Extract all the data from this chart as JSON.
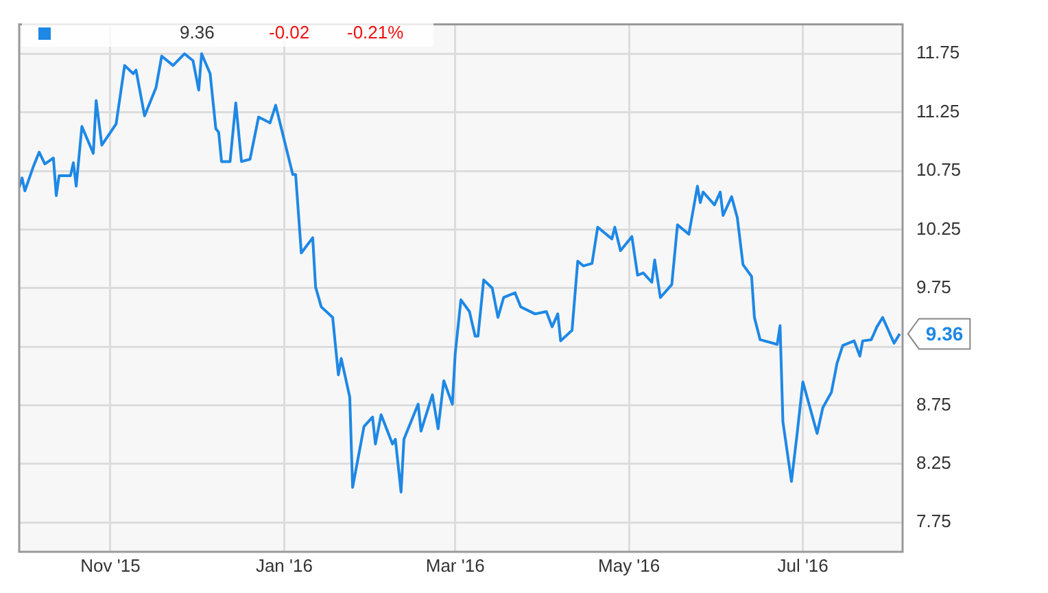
{
  "chart_data": {
    "type": "line",
    "x": [
      "2015-09-30",
      "2015-10-01",
      "2015-10-02",
      "2015-10-05",
      "2015-10-07",
      "2015-10-09",
      "2015-10-12",
      "2015-10-13",
      "2015-10-14",
      "2015-10-18",
      "2015-10-19",
      "2015-10-20",
      "2015-10-22",
      "2015-10-26",
      "2015-10-27",
      "2015-10-29",
      "2015-11-03",
      "2015-11-06",
      "2015-11-09",
      "2015-11-10",
      "2015-11-13",
      "2015-11-17",
      "2015-11-19",
      "2015-11-23",
      "2015-11-27",
      "2015-11-30",
      "2015-12-02",
      "2015-12-03",
      "2015-12-06",
      "2015-12-08",
      "2015-12-09",
      "2015-12-10",
      "2015-12-13",
      "2015-12-15",
      "2015-12-17",
      "2015-12-20",
      "2015-12-23",
      "2015-12-27",
      "2015-12-29",
      "2016-01-04",
      "2016-01-05",
      "2016-01-07",
      "2016-01-11",
      "2016-01-12",
      "2016-01-14",
      "2016-01-18",
      "2016-01-20",
      "2016-01-21",
      "2016-01-24",
      "2016-01-25",
      "2016-01-29",
      "2016-02-01",
      "2016-02-02",
      "2016-02-04",
      "2016-02-08",
      "2016-02-09",
      "2016-02-11",
      "2016-02-12",
      "2016-02-17",
      "2016-02-18",
      "2016-02-22",
      "2016-02-24",
      "2016-02-26",
      "2016-02-29",
      "2016-03-01",
      "2016-03-03",
      "2016-03-06",
      "2016-03-08",
      "2016-03-09",
      "2016-03-11",
      "2016-03-14",
      "2016-03-16",
      "2016-03-18",
      "2016-03-22",
      "2016-03-24",
      "2016-03-29",
      "2016-04-02",
      "2016-04-04",
      "2016-04-06",
      "2016-04-07",
      "2016-04-11",
      "2016-04-13",
      "2016-04-15",
      "2016-04-18",
      "2016-04-20",
      "2016-04-25",
      "2016-04-26",
      "2016-04-28",
      "2016-05-02",
      "2016-05-04",
      "2016-05-06",
      "2016-05-09",
      "2016-05-10",
      "2016-05-12",
      "2016-05-16",
      "2016-05-18",
      "2016-05-22",
      "2016-05-25",
      "2016-05-26",
      "2016-05-27",
      "2016-05-31",
      "2016-06-02",
      "2016-06-03",
      "2016-06-06",
      "2016-06-08",
      "2016-06-10",
      "2016-06-13",
      "2016-06-14",
      "2016-06-16",
      "2016-06-22",
      "2016-06-23",
      "2016-06-24",
      "2016-06-27",
      "2016-06-29",
      "2016-07-01",
      "2016-07-06",
      "2016-07-08",
      "2016-07-11",
      "2016-07-13",
      "2016-07-15",
      "2016-07-19",
      "2016-07-21",
      "2016-07-22",
      "2016-07-25",
      "2016-07-27",
      "2016-07-29",
      "2016-08-02",
      "2016-08-04"
    ],
    "series": [
      {
        "color": "#1e88e5",
        "values": [
          10.61,
          10.69,
          10.58,
          10.79,
          10.91,
          10.81,
          10.86,
          10.54,
          10.71,
          10.71,
          10.82,
          10.62,
          11.13,
          10.9,
          11.35,
          10.97,
          11.15,
          11.65,
          11.58,
          11.61,
          11.22,
          11.46,
          11.73,
          11.65,
          11.75,
          11.69,
          11.44,
          11.75,
          11.58,
          11.11,
          11.08,
          10.83,
          10.83,
          11.33,
          10.83,
          10.85,
          11.21,
          11.16,
          11.31,
          10.72,
          10.72,
          10.05,
          10.18,
          9.76,
          9.59,
          9.5,
          9.01,
          9.15,
          8.82,
          8.05,
          8.57,
          8.65,
          8.42,
          8.67,
          8.42,
          8.46,
          8.01,
          8.46,
          8.76,
          8.53,
          8.84,
          8.55,
          8.96,
          8.76,
          9.19,
          9.65,
          9.55,
          9.34,
          9.34,
          9.82,
          9.75,
          9.5,
          9.67,
          9.71,
          9.59,
          9.53,
          9.55,
          9.42,
          9.53,
          9.3,
          9.39,
          9.98,
          9.94,
          9.96,
          10.27,
          10.17,
          10.27,
          10.07,
          10.19,
          9.86,
          9.88,
          9.8,
          9.99,
          9.67,
          9.78,
          10.29,
          10.21,
          10.62,
          10.48,
          10.57,
          10.46,
          10.57,
          10.37,
          10.53,
          10.35,
          9.95,
          9.85,
          9.5,
          9.31,
          9.27,
          9.43,
          8.61,
          8.1,
          8.51,
          8.95,
          8.51,
          8.73,
          8.86,
          9.11,
          9.26,
          9.3,
          9.17,
          9.3,
          9.31,
          9.42,
          9.5,
          9.28,
          9.36
        ]
      }
    ],
    "xlim": [
      "2015-09-30",
      "2016-08-05"
    ],
    "xticks": [
      {
        "value": "2015-11-01",
        "label": "Nov '15"
      },
      {
        "value": "2016-01-01",
        "label": "Jan '16"
      },
      {
        "value": "2016-03-01",
        "label": "Mar '16"
      },
      {
        "value": "2016-05-01",
        "label": "May '16"
      },
      {
        "value": "2016-07-01",
        "label": "Jul '16"
      }
    ],
    "ylim": [
      7.5,
      12.0
    ],
    "yticks": [
      7.75,
      8.25,
      8.75,
      {
        "value": 9.25,
        "label": null
      },
      9.75,
      10.25,
      10.75,
      11.25,
      11.75
    ],
    "grid": true,
    "marker": "none",
    "annotations": [
      "9.36",
      "-0.02",
      "-0.21%",
      {
        "text": "9.36",
        "x": "2016-08-04",
        "y": 9.36
      }
    ]
  }
}
